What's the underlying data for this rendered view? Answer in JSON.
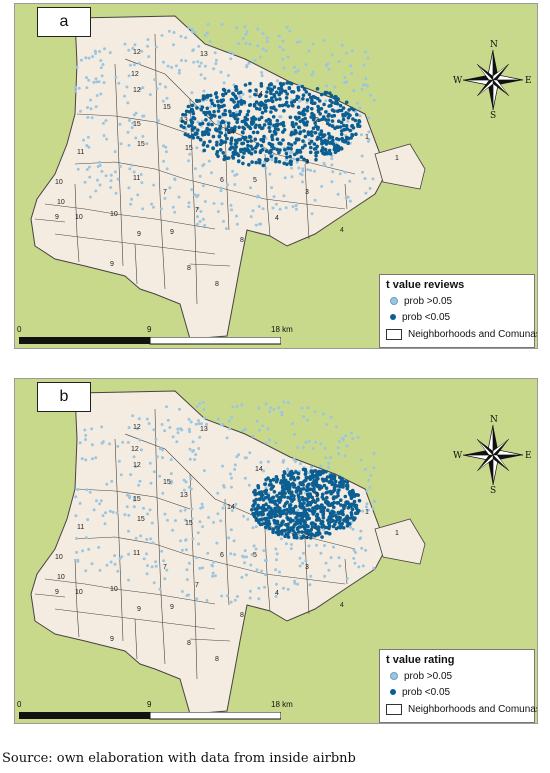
{
  "panels": [
    {
      "label": "a",
      "legend": {
        "title": "t value reviews",
        "items": [
          {
            "label": "prob >0.05",
            "symbol": "light-dot"
          },
          {
            "label": "prob <0.05",
            "symbol": "dark-dot"
          },
          {
            "label": "Neighborhoods and Comunas",
            "symbol": "polygon"
          }
        ]
      }
    },
    {
      "label": "b",
      "legend": {
        "title": "t value rating",
        "items": [
          {
            "label": "prob >0.05",
            "symbol": "light-dot"
          },
          {
            "label": "prob <0.05",
            "symbol": "dark-dot"
          },
          {
            "label": "Neighborhoods and Comunas",
            "symbol": "polygon"
          }
        ]
      }
    }
  ],
  "scale_bar": {
    "start": "0",
    "mid": "9",
    "end": "18 km"
  },
  "compass": {
    "n": "N",
    "s": "S",
    "e": "E",
    "w": "W"
  },
  "comunas": [
    "12",
    "13",
    "12",
    "14",
    "12",
    "15",
    "13",
    "15",
    "11",
    "2",
    "1",
    "15",
    "15",
    "14",
    "1",
    "11",
    "3",
    "10",
    "5",
    "10",
    "6",
    "10",
    "3",
    "9",
    "7",
    "4",
    "10",
    "9",
    "8",
    "8",
    "4",
    "9",
    "8",
    "9",
    "7"
  ],
  "colors": {
    "land": "#c9d98c",
    "city": "#f4ece1",
    "light_dot": "#9cc6df",
    "dark_dot": "#0c5f92",
    "border": "#444444"
  },
  "source_text": "Source: own elaboration with data from inside airbnb"
}
